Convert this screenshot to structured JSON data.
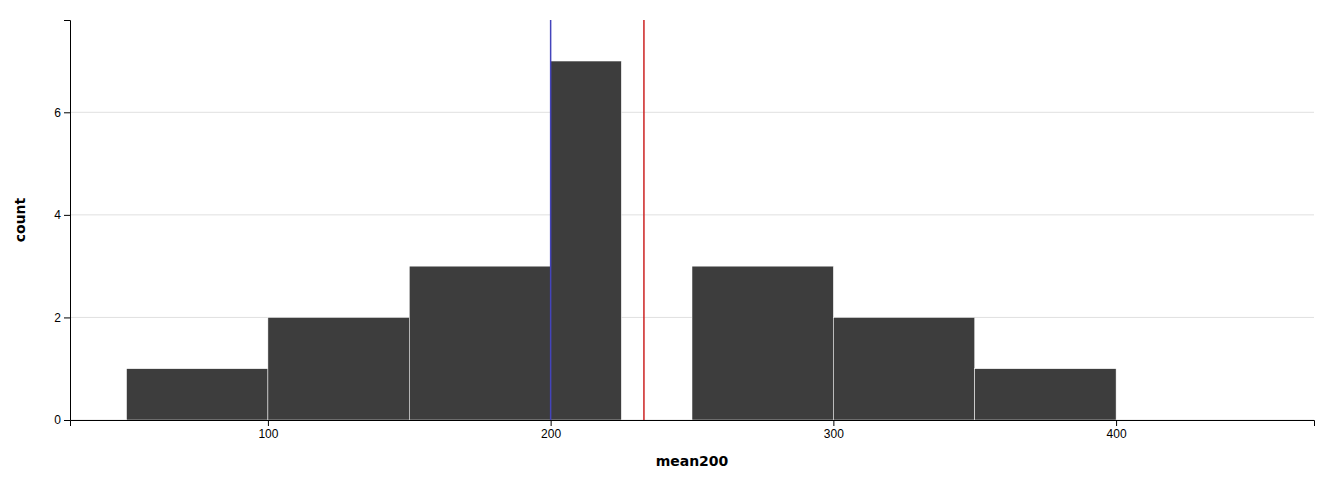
{
  "chart_data": {
    "type": "histogram",
    "bins": [
      50,
      100,
      150,
      200,
      225,
      250,
      300,
      350,
      400,
      450
    ],
    "values": [
      1,
      2,
      3,
      7,
      0,
      3,
      2,
      1,
      0
    ],
    "color": "#3d3d3d",
    "xlabel": "mean200",
    "ylabel": "count",
    "xlim": [
      30,
      470
    ],
    "ylim": [
      0,
      7.8
    ],
    "xticks": [
      100,
      200,
      300,
      400
    ],
    "yticks": [
      0,
      2,
      4,
      6
    ],
    "grid": "y",
    "vlines": [
      {
        "x": 200,
        "color": "#4444bb"
      },
      {
        "x": 233,
        "color": "#cc2222"
      }
    ]
  }
}
